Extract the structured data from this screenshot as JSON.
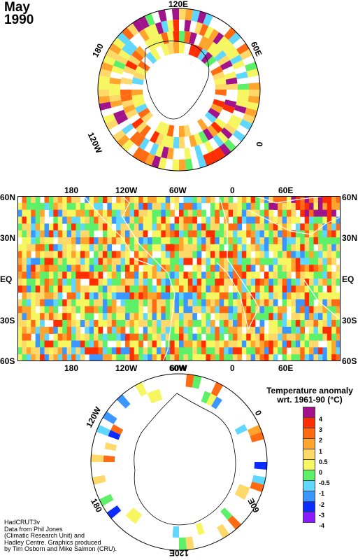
{
  "title": {
    "month": "May",
    "year": "1990"
  },
  "north_polar_labels": {
    "top": "120E",
    "right": "60E",
    "bottom_right": "0",
    "left": "180",
    "bottom_left": "120W"
  },
  "world_map": {
    "top_lon_labels": [
      "180",
      "120W",
      "60W",
      "0",
      "60E"
    ],
    "bottom_lon_labels": [
      "180",
      "120W",
      "60W",
      "0",
      "60E"
    ],
    "lat_labels": [
      "60N",
      "30N",
      "EQ",
      "30S",
      "60S"
    ]
  },
  "south_polar_labels": {
    "top_left": "120W",
    "left_bottom": "180",
    "bottom": "120E",
    "right_bottom": "60E",
    "right_top": "0",
    "top": "60W"
  },
  "legend": {
    "title_line1": "Temperature anomaly",
    "title_line2": "wrt. 1961-90  (°C)",
    "items": [
      {
        "label": "4",
        "color": "#a0138a"
      },
      {
        "label": "3",
        "color": "#ff2e00"
      },
      {
        "label": "2",
        "color": "#ff6a12"
      },
      {
        "label": "1",
        "color": "#ffa52e"
      },
      {
        "label": "0.5",
        "color": "#ffd86a"
      },
      {
        "label": "0",
        "color": "#f6f660"
      },
      {
        "label": "-0.5",
        "color": "#5ff06a"
      },
      {
        "label": "-1",
        "color": "#5fd7ff"
      },
      {
        "label": "-2",
        "color": "#3c96ff"
      },
      {
        "label": "-3",
        "color": "#0c2bff"
      },
      {
        "label": "-4",
        "color": "#8a1aff"
      }
    ]
  },
  "credit": [
    "HadCRUT3v",
    "Data from Phil Jones",
    "(Climatic Research Unit) and",
    "Hadley Centre.  Graphics produced",
    "by Tim Osborn and Mike Salmon (CRU)."
  ]
}
